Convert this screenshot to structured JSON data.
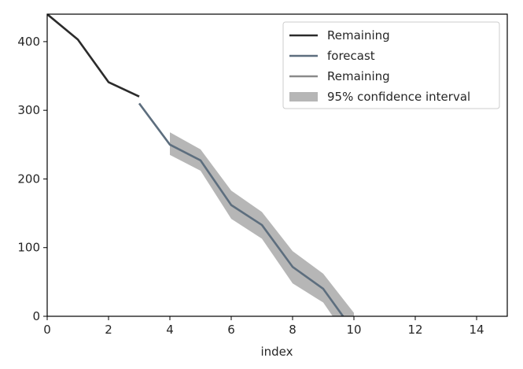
{
  "chart_data": {
    "type": "line",
    "xlabel": "index",
    "ylabel": "",
    "xlim": [
      0,
      15
    ],
    "ylim": [
      0,
      440
    ],
    "x_ticks": [
      0,
      2,
      4,
      6,
      8,
      10,
      12,
      14
    ],
    "y_ticks": [
      0,
      100,
      200,
      300,
      400
    ],
    "grid": false,
    "legend_position": "top-right",
    "series": [
      {
        "name": "Remaining",
        "kind": "line",
        "color": "#2b2b2b",
        "x": [
          0,
          1,
          2,
          3
        ],
        "y": [
          440,
          403,
          341,
          320
        ]
      },
      {
        "name": "forecast",
        "kind": "line",
        "color": "#5d6e7e",
        "x": [
          3,
          4,
          5,
          6,
          7,
          8,
          9,
          10
        ],
        "y": [
          310,
          250,
          227,
          162,
          133,
          72,
          40,
          -22
        ]
      },
      {
        "name": "Remaining",
        "kind": "line",
        "color": "#8a8a8a",
        "x": [],
        "y": []
      },
      {
        "name": "95% confidence interval",
        "kind": "band",
        "color": "#9e9e9e",
        "x": [
          4,
          5,
          6,
          7,
          8,
          9,
          10
        ],
        "upper": [
          268,
          243,
          183,
          152,
          95,
          62,
          5
        ],
        "lower": [
          235,
          212,
          142,
          113,
          48,
          20,
          -45
        ]
      }
    ]
  }
}
